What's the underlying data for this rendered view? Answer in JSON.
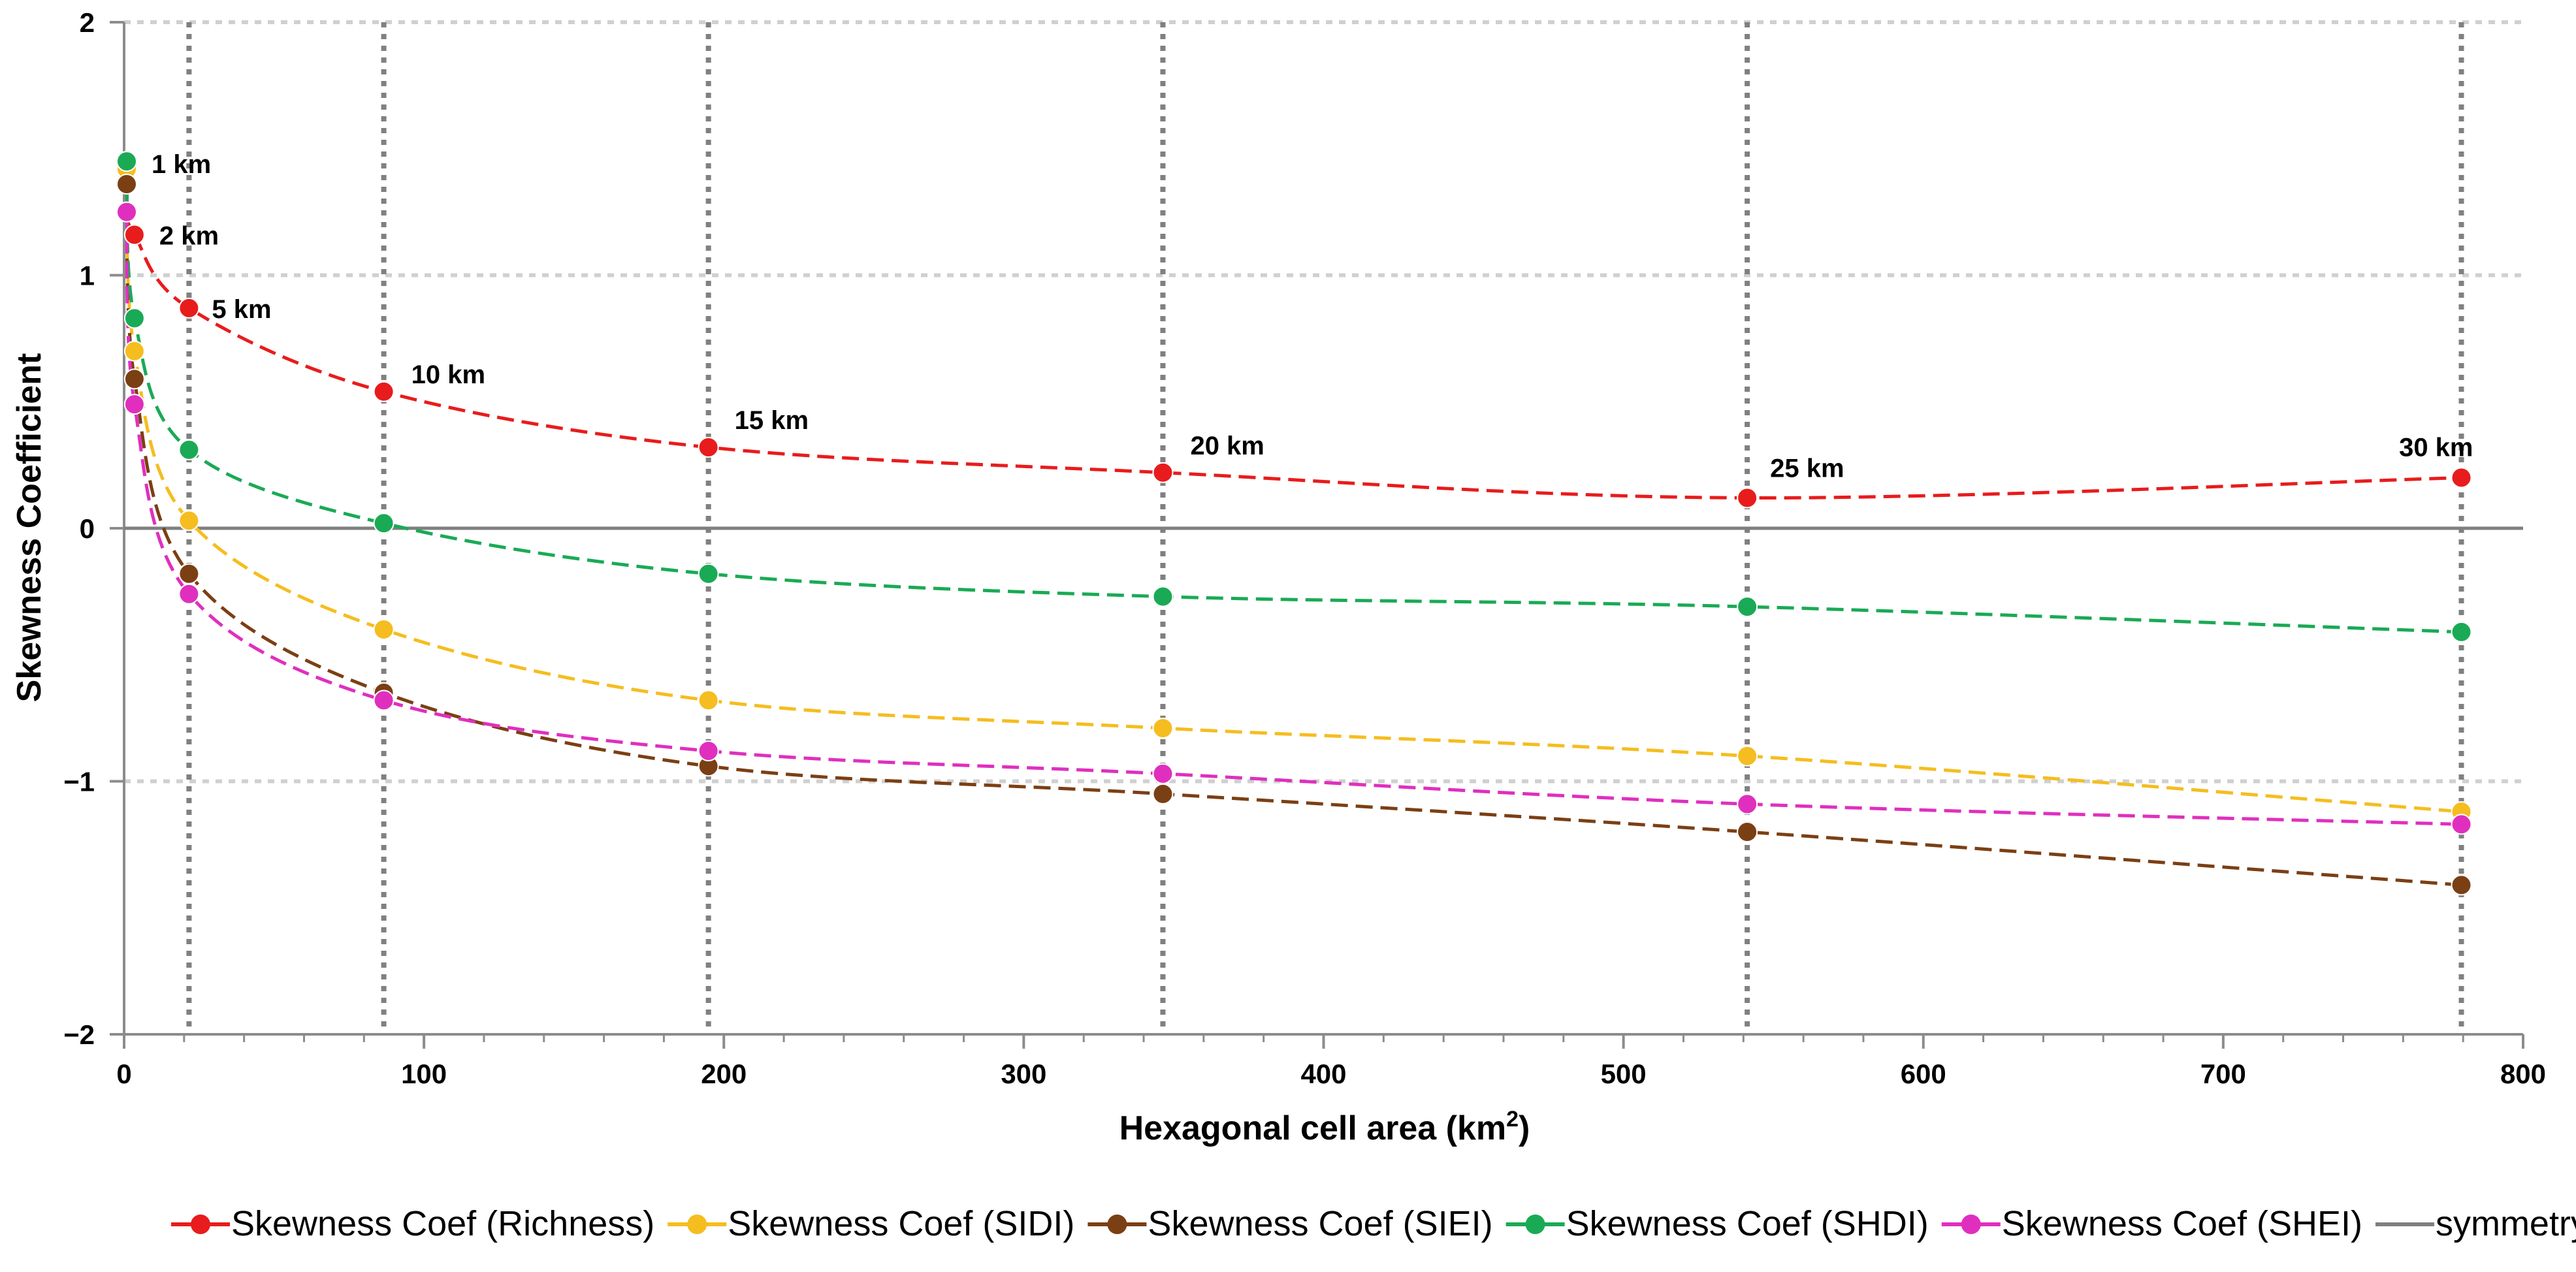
{
  "chart_data": {
    "type": "line",
    "title": "",
    "xlabel": "Hexagonal cell area (km",
    "xlabel_sup": "2",
    "xlabel_end": ")",
    "ylabel": "Skewness Coefficient",
    "xlim": [
      0,
      800
    ],
    "ylim": [
      -2,
      2
    ],
    "x_ticks": [
      "0",
      "100",
      "200",
      "300",
      "400",
      "500",
      "600",
      "700",
      "800"
    ],
    "y_ticks": [
      "−2",
      "−1",
      "0",
      "1",
      "2"
    ],
    "x": [
      0.87,
      3.46,
      21.65,
      86.6,
      194.86,
      346.41,
      541.27,
      779.42
    ],
    "vertical_guides": [
      21.65,
      86.6,
      194.86,
      346.41,
      541.27,
      779.42
    ],
    "annotations": [
      "1 km",
      "2 km",
      "5 km",
      "10 km",
      "15 km",
      "20 km",
      "25 km",
      "30 km"
    ],
    "series": [
      {
        "name": "Skewness Coef (Richness)",
        "color": "#e81c1c",
        "values": [
          1.25,
          1.16,
          0.87,
          0.54,
          0.32,
          0.22,
          0.12,
          0.2
        ]
      },
      {
        "name": "Skewness Coef (SIDI)",
        "color": "#f5bd1f",
        "values": [
          1.42,
          0.7,
          0.03,
          -0.4,
          -0.68,
          -0.79,
          -0.9,
          -1.12
        ]
      },
      {
        "name": "Skewness Coef (SIEI)",
        "color": "#7b3f14",
        "values": [
          1.36,
          0.59,
          -0.18,
          -0.65,
          -0.94,
          -1.05,
          -1.2,
          -1.41
        ]
      },
      {
        "name": "Skewness Coef (SHDI)",
        "color": "#1aaa55",
        "values": [
          1.45,
          0.83,
          0.31,
          0.02,
          -0.18,
          -0.27,
          -0.31,
          -0.41
        ]
      },
      {
        "name": "Skewness Coef (SHEI)",
        "color": "#e02fbe",
        "values": [
          1.25,
          0.49,
          -0.26,
          -0.68,
          -0.88,
          -0.97,
          -1.09,
          -1.17
        ]
      }
    ],
    "reference_line": {
      "name": "symmetry",
      "color": "#7f7f7f",
      "value": 0
    },
    "legend_position": "bottom"
  }
}
